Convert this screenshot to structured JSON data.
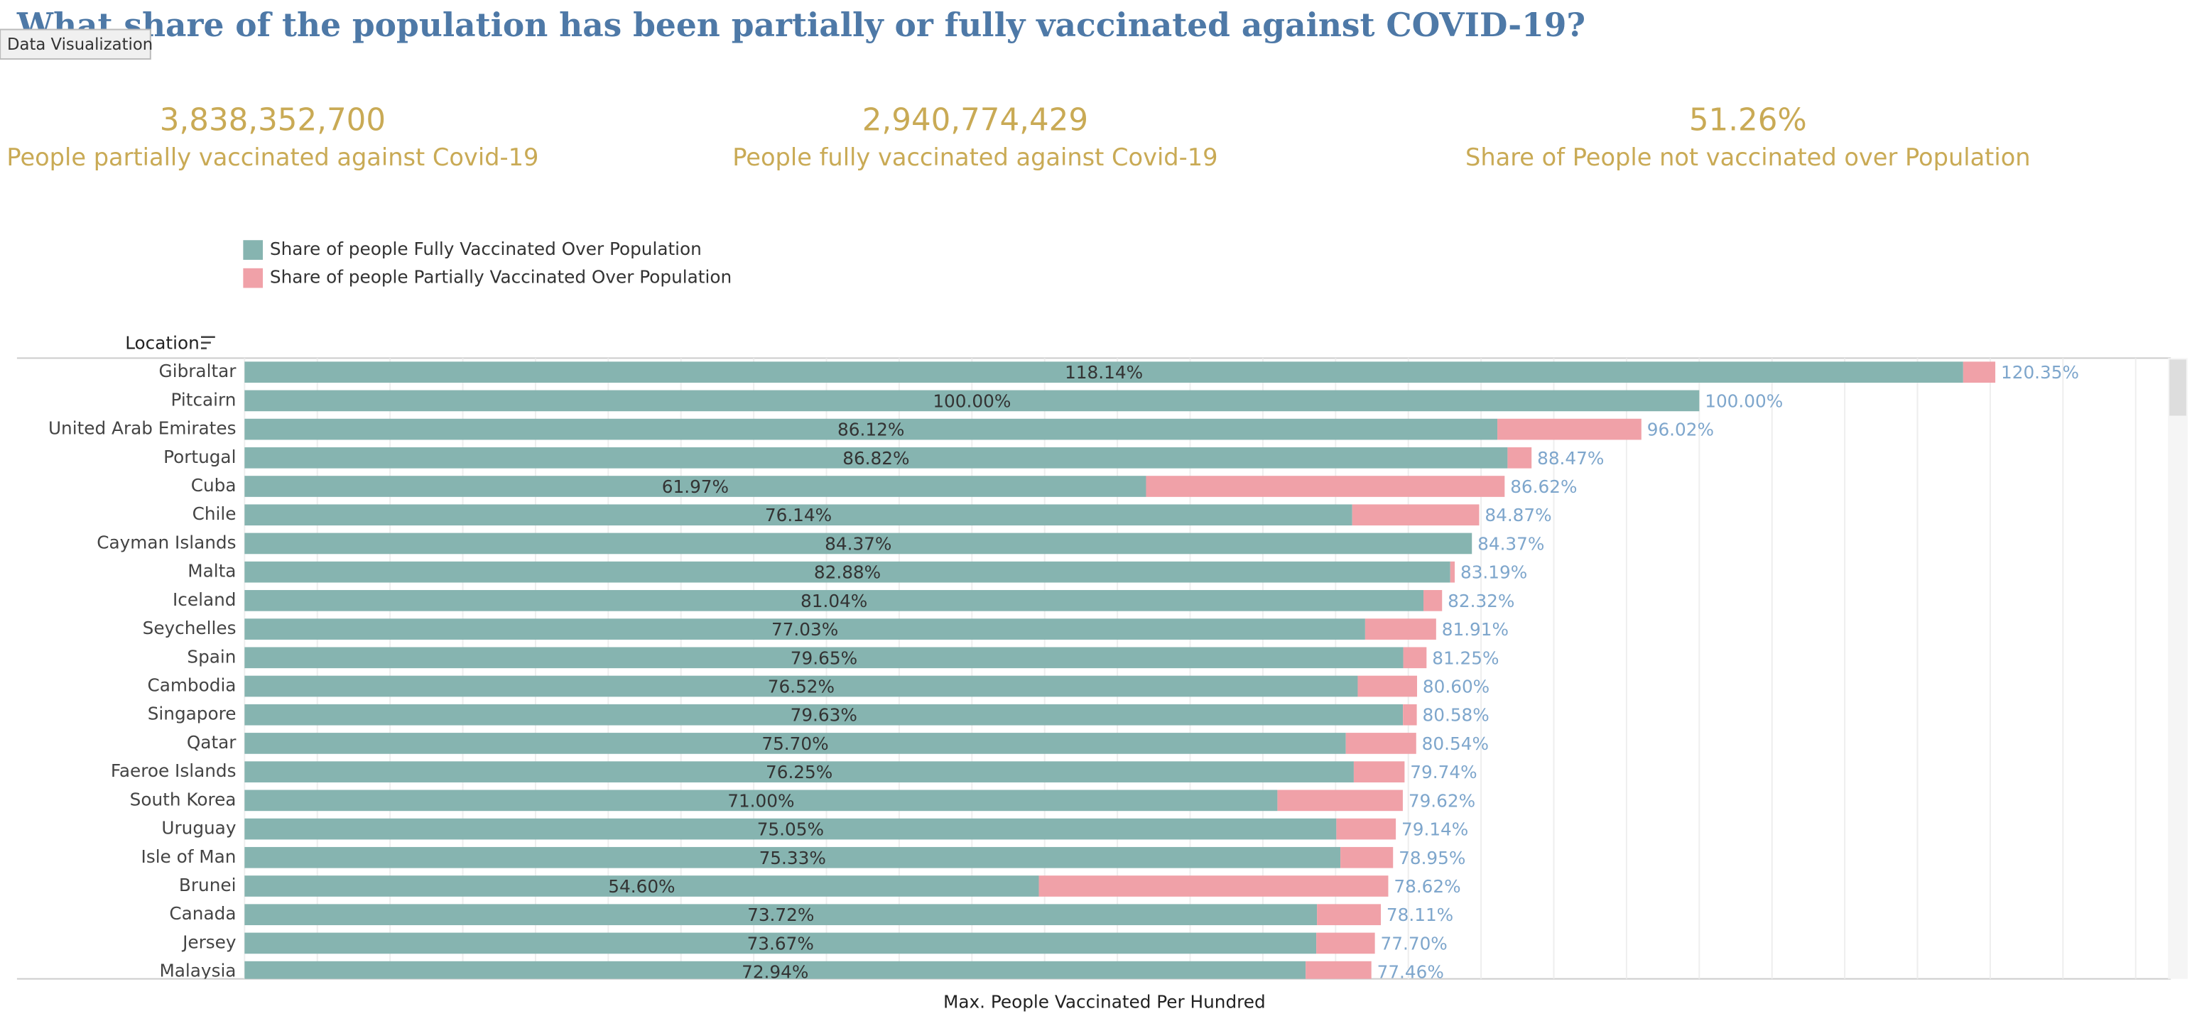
{
  "dashboard": {
    "title": "What share of the population has been partially or fully vaccinated against COVID-19?",
    "tab": "Data Visualization",
    "kpis": [
      {
        "value": "3,838,352,700",
        "label": "People partially vaccinated against Covid-19"
      },
      {
        "value": "2,940,774,429",
        "label": "People fully  vaccinated against Covid-19"
      },
      {
        "value": "51.26%",
        "label": "Share of People not vaccinated over Population"
      }
    ]
  },
  "chart_data": {
    "type": "stacked-hbar",
    "y_label": "Location",
    "x_label": "Max. People Vaccinated Per Hundred",
    "categories": [
      "Gibraltar",
      "Pitcairn",
      "United Arab Emirates",
      "Portugal",
      "Cuba",
      "Chile",
      "Cayman Islands",
      "Malta",
      "Iceland",
      "Seychelles",
      "Spain",
      "Cambodia",
      "Singapore",
      "Qatar",
      "Faeroe Islands",
      "South Korea",
      "Uruguay",
      "Isle of Man",
      "Brunei",
      "Canada",
      "Jersey",
      "Malaysia"
    ],
    "series": [
      {
        "name": "Share of people Fully Vaccinated Over Population",
        "color": "#86b4b0",
        "values": [
          118.14,
          100.0,
          86.12,
          86.82,
          61.97,
          76.14,
          84.37,
          82.88,
          81.04,
          77.03,
          79.65,
          76.52,
          79.63,
          75.7,
          76.25,
          71.0,
          75.05,
          75.33,
          54.6,
          73.72,
          73.67,
          72.94
        ],
        "value_labels": [
          "118.14%",
          "100.00%",
          "86.12%",
          "86.82%",
          "61.97%",
          "76.14%",
          "84.37%",
          "82.88%",
          "81.04%",
          "77.03%",
          "79.65%",
          "76.52%",
          "79.63%",
          "75.70%",
          "76.25%",
          "71.00%",
          "75.05%",
          "75.33%",
          "54.60%",
          "73.72%",
          "73.67%",
          "72.94%"
        ]
      },
      {
        "name": "Share of people Partially Vaccinated Over Population",
        "color": "#f0a1a8",
        "values": [
          2.21,
          0,
          9.9,
          1.65,
          24.65,
          8.73,
          0,
          0.31,
          1.28,
          4.88,
          1.6,
          4.08,
          0.95,
          4.84,
          3.49,
          8.62,
          4.09,
          3.62,
          24.02,
          4.39,
          4.03,
          4.52
        ]
      }
    ],
    "totals": [
      120.35,
      100.0,
      96.02,
      88.47,
      86.62,
      84.87,
      84.37,
      83.19,
      82.32,
      81.91,
      81.25,
      80.6,
      80.58,
      80.54,
      79.74,
      79.62,
      79.14,
      78.95,
      78.62,
      78.11,
      77.7,
      77.46
    ],
    "total_labels": [
      "120.35%",
      "100.00%",
      "96.02%",
      "88.47%",
      "86.62%",
      "84.87%",
      "84.37%",
      "83.19%",
      "82.32%",
      "81.91%",
      "81.25%",
      "80.60%",
      "80.58%",
      "80.54%",
      "79.74%",
      "79.62%",
      "79.14%",
      "78.95%",
      "78.62%",
      "78.11%",
      "77.70%",
      "77.46%"
    ],
    "total_label_color": "#7ea6cc",
    "xlim": [
      0,
      130
    ],
    "xticks": [
      0,
      5,
      10,
      15,
      20,
      25,
      30,
      35,
      40,
      45,
      50,
      55,
      60,
      65,
      70,
      75,
      80,
      85,
      90,
      95,
      100,
      105,
      110,
      115,
      120,
      125,
      130
    ],
    "grid": true
  }
}
